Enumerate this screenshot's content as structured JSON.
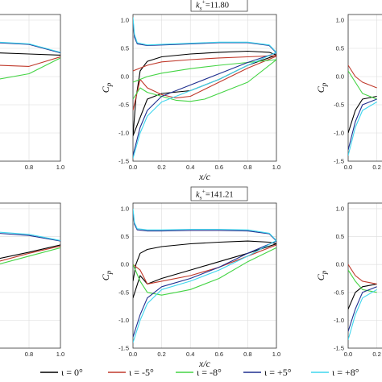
{
  "chart_data": {
    "type": "line",
    "shared": {
      "xlabel": "x/c",
      "ylabel": "C",
      "ylabel_sub": "p",
      "y_ticks": [
        "-1.5",
        "-1.0",
        "-0.5",
        "0.0",
        "0.5",
        "1.0"
      ],
      "x_ticks": [
        "0.0",
        "0.2",
        "0.4",
        "0.6",
        "0.8",
        "1.0"
      ],
      "xlim": [
        0,
        1
      ],
      "ylim": [
        -1.5,
        1.1
      ],
      "grid": true
    },
    "legend": {
      "placement": "bottom",
      "entries": [
        {
          "label": "ι = 0°",
          "color": "#000000"
        },
        {
          "label": "ι = -5°",
          "color": "#c0392b"
        },
        {
          "label": "ι = -8°",
          "color": "#44d444"
        },
        {
          "label": "ι = +5°",
          "color": "#1f2f8f"
        },
        {
          "label": "ι = +8°",
          "color": "#3fd6ee"
        }
      ]
    },
    "panels": [
      {
        "id": "top-left",
        "annotation": "",
        "series": [
          {
            "name": "ι = 0°",
            "color": "#000000",
            "x": [
              0.0,
              0.2,
              0.4,
              0.6,
              0.8,
              1.0
            ],
            "y": [
              0.5,
              0.47,
              0.44,
              0.42,
              0.4,
              0.38
            ]
          },
          {
            "name": "ι = -5°",
            "color": "#c0392b",
            "x": [
              0.0,
              0.2,
              0.4,
              0.6,
              0.8,
              1.0
            ],
            "y": [
              0.35,
              0.3,
              0.25,
              0.2,
              0.18,
              0.35
            ]
          },
          {
            "name": "ι = -8°",
            "color": "#44d444",
            "x": [
              0.0,
              0.2,
              0.4,
              0.6,
              0.8,
              1.0
            ],
            "y": [
              0.2,
              0.1,
              0.0,
              -0.05,
              0.05,
              0.33
            ]
          },
          {
            "name": "ι = +5°",
            "color": "#1f2f8f",
            "x": [
              0.0,
              0.2,
              0.4,
              0.6,
              0.8,
              1.0
            ],
            "y": [
              0.65,
              0.64,
              0.62,
              0.6,
              0.57,
              0.42
            ]
          },
          {
            "name": "ι = +8°",
            "color": "#3fd6ee",
            "x": [
              0.0,
              0.2,
              0.4,
              0.6,
              0.8,
              1.0
            ],
            "y": [
              0.66,
              0.65,
              0.63,
              0.61,
              0.58,
              0.43
            ]
          }
        ]
      },
      {
        "id": "top-middle",
        "annotation": "=11.80",
        "annotation_var": "k",
        "annotation_sub": "s",
        "annotation_sup": "+",
        "series": [
          {
            "name": "ι = 0°",
            "color": "#000000",
            "x": [
              0.0,
              0.02,
              0.05,
              0.1,
              0.2,
              0.4,
              0.6,
              0.8,
              0.95,
              1.0
            ],
            "y": [
              -1.05,
              -0.4,
              0.1,
              0.27,
              0.35,
              0.4,
              0.43,
              0.45,
              0.43,
              0.38
            ]
          },
          {
            "name": "ι = 0° (lower)",
            "color": "#000000",
            "x": [
              0.0,
              0.1,
              0.2,
              0.4,
              0.6,
              0.8,
              1.0
            ],
            "y": [
              -1.05,
              -0.4,
              -0.3,
              -0.25,
              -0.05,
              0.2,
              0.38
            ]
          },
          {
            "name": "ι = -5°",
            "color": "#c0392b",
            "x": [
              0.0,
              0.05,
              0.1,
              0.2,
              0.3,
              0.4,
              0.6,
              0.8,
              1.0
            ],
            "y": [
              -0.6,
              -0.05,
              -0.2,
              -0.32,
              -0.38,
              -0.35,
              -0.1,
              0.15,
              0.36
            ]
          },
          {
            "name": "ι = -5° (upper)",
            "color": "#c0392b",
            "x": [
              0.0,
              0.1,
              0.2,
              0.4,
              0.6,
              0.8,
              1.0
            ],
            "y": [
              0.1,
              0.2,
              0.26,
              0.3,
              0.33,
              0.35,
              0.37
            ]
          },
          {
            "name": "ι = -8°",
            "color": "#44d444",
            "x": [
              0.0,
              0.05,
              0.1,
              0.2,
              0.3,
              0.4,
              0.5,
              0.6,
              0.8,
              1.0
            ],
            "y": [
              -0.4,
              -0.2,
              -0.28,
              -0.35,
              -0.42,
              -0.44,
              -0.4,
              -0.3,
              -0.1,
              0.3
            ]
          },
          {
            "name": "ι = -8° (upper)",
            "color": "#44d444",
            "x": [
              0.0,
              0.1,
              0.2,
              0.4,
              0.6,
              0.8,
              1.0
            ],
            "y": [
              -0.1,
              0.0,
              0.06,
              0.14,
              0.2,
              0.25,
              0.3
            ]
          },
          {
            "name": "ι = +5°",
            "color": "#1f2f8f",
            "x": [
              0.0,
              0.01,
              0.03,
              0.1,
              0.2,
              0.4,
              0.6,
              0.8,
              0.95,
              1.0
            ],
            "y": [
              1.0,
              0.7,
              0.58,
              0.55,
              0.56,
              0.58,
              0.6,
              0.6,
              0.55,
              0.42
            ]
          },
          {
            "name": "ι = +5° (lower)",
            "color": "#1f2f8f",
            "x": [
              0.0,
              0.05,
              0.1,
              0.2,
              0.4,
              0.6,
              0.8,
              1.0
            ],
            "y": [
              -1.4,
              -0.9,
              -0.6,
              -0.35,
              -0.15,
              0.05,
              0.25,
              0.42
            ]
          },
          {
            "name": "ι = +8°",
            "color": "#3fd6ee",
            "x": [
              0.0,
              0.01,
              0.03,
              0.1,
              0.2,
              0.4,
              0.6,
              0.8,
              0.95,
              1.0
            ],
            "y": [
              1.05,
              0.75,
              0.6,
              0.56,
              0.57,
              0.59,
              0.61,
              0.61,
              0.56,
              0.43
            ]
          },
          {
            "name": "ι = +8° (lower)",
            "color": "#3fd6ee",
            "x": [
              0.0,
              0.05,
              0.1,
              0.2,
              0.4,
              0.6,
              0.8,
              1.0
            ],
            "y": [
              -1.45,
              -1.0,
              -0.7,
              -0.45,
              -0.25,
              -0.05,
              0.2,
              0.43
            ]
          }
        ]
      },
      {
        "id": "top-right",
        "annotation": "",
        "series": [
          {
            "name": "ι = 0°",
            "color": "#000000",
            "x": [
              0.0,
              0.05,
              0.1,
              0.2
            ],
            "y": [
              -1.0,
              -0.6,
              -0.4,
              -0.35
            ]
          },
          {
            "name": "ι = -5°",
            "color": "#c0392b",
            "x": [
              0.0,
              0.05,
              0.1,
              0.2
            ],
            "y": [
              0.2,
              0.0,
              -0.1,
              -0.2
            ]
          },
          {
            "name": "ι = -8°",
            "color": "#44d444",
            "x": [
              0.0,
              0.05,
              0.1,
              0.2
            ],
            "y": [
              0.1,
              -0.1,
              -0.3,
              -0.4
            ]
          },
          {
            "name": "ι = +5°",
            "color": "#1f2f8f",
            "x": [
              0.0,
              0.05,
              0.1,
              0.2
            ],
            "y": [
              -1.3,
              -0.8,
              -0.5,
              -0.4
            ]
          },
          {
            "name": "ι = +8°",
            "color": "#3fd6ee",
            "x": [
              0.0,
              0.05,
              0.1,
              0.2
            ],
            "y": [
              -1.4,
              -0.9,
              -0.6,
              -0.45
            ]
          }
        ]
      },
      {
        "id": "bottom-left",
        "annotation": "",
        "series": [
          {
            "name": "ι = 0°",
            "color": "#000000",
            "x": [
              0.0,
              0.2,
              0.4,
              0.6,
              0.8,
              1.0
            ],
            "y": [
              -0.2,
              -0.1,
              0.0,
              0.1,
              0.22,
              0.35
            ]
          },
          {
            "name": "ι = -5°",
            "color": "#c0392b",
            "x": [
              0.0,
              0.2,
              0.4,
              0.6,
              0.8,
              1.0
            ],
            "y": [
              -0.3,
              -0.2,
              -0.05,
              0.05,
              0.2,
              0.33
            ]
          },
          {
            "name": "ι = -8°",
            "color": "#44d444",
            "x": [
              0.0,
              0.2,
              0.4,
              0.6,
              0.8,
              1.0
            ],
            "y": [
              -0.4,
              -0.3,
              -0.15,
              0.0,
              0.15,
              0.3
            ]
          },
          {
            "name": "ι = +5°",
            "color": "#1f2f8f",
            "x": [
              0.0,
              0.2,
              0.4,
              0.6,
              0.8,
              1.0
            ],
            "y": [
              0.62,
              0.6,
              0.58,
              0.56,
              0.52,
              0.42
            ]
          },
          {
            "name": "ι = +8°",
            "color": "#3fd6ee",
            "x": [
              0.0,
              0.2,
              0.4,
              0.6,
              0.8,
              1.0
            ],
            "y": [
              0.64,
              0.62,
              0.6,
              0.58,
              0.54,
              0.43
            ]
          }
        ]
      },
      {
        "id": "bottom-middle",
        "annotation": "=141.21",
        "annotation_var": "k",
        "annotation_sub": "s",
        "annotation_sup": "+",
        "series": [
          {
            "name": "ι = 0°",
            "color": "#000000",
            "x": [
              0.0,
              0.02,
              0.05,
              0.1,
              0.2,
              0.4,
              0.6,
              0.8,
              0.95,
              1.0
            ],
            "y": [
              -0.3,
              0.0,
              0.2,
              0.27,
              0.32,
              0.37,
              0.4,
              0.42,
              0.4,
              0.37
            ]
          },
          {
            "name": "ι = 0° (lower)",
            "color": "#000000",
            "x": [
              0.0,
              0.05,
              0.1,
              0.2,
              0.4,
              0.6,
              0.8,
              1.0
            ],
            "y": [
              -0.6,
              -0.2,
              -0.35,
              -0.25,
              -0.1,
              0.05,
              0.2,
              0.37
            ]
          },
          {
            "name": "ι = -5°",
            "color": "#c0392b",
            "x": [
              0.0,
              0.05,
              0.1,
              0.2,
              0.4,
              0.6,
              0.8,
              1.0
            ],
            "y": [
              0.0,
              -0.1,
              -0.35,
              -0.3,
              -0.2,
              -0.05,
              0.15,
              0.35
            ]
          },
          {
            "name": "ι = -8°",
            "color": "#44d444",
            "x": [
              0.0,
              0.05,
              0.1,
              0.2,
              0.3,
              0.4,
              0.6,
              0.8,
              1.0
            ],
            "y": [
              0.0,
              -0.3,
              -0.5,
              -0.55,
              -0.5,
              -0.45,
              -0.25,
              0.05,
              0.3
            ]
          },
          {
            "name": "ι = +5°",
            "color": "#1f2f8f",
            "x": [
              0.0,
              0.01,
              0.03,
              0.1,
              0.2,
              0.4,
              0.6,
              0.8,
              0.95,
              1.0
            ],
            "y": [
              0.95,
              0.72,
              0.62,
              0.6,
              0.6,
              0.61,
              0.61,
              0.6,
              0.55,
              0.42
            ]
          },
          {
            "name": "ι = +5° (lower)",
            "color": "#1f2f8f",
            "x": [
              0.0,
              0.05,
              0.1,
              0.2,
              0.4,
              0.6,
              0.8,
              1.0
            ],
            "y": [
              -1.3,
              -0.9,
              -0.6,
              -0.4,
              -0.25,
              -0.05,
              0.2,
              0.42
            ]
          },
          {
            "name": "ι = +8°",
            "color": "#3fd6ee",
            "x": [
              0.0,
              0.01,
              0.03,
              0.1,
              0.2,
              0.4,
              0.6,
              0.8,
              0.95,
              1.0
            ],
            "y": [
              1.0,
              0.75,
              0.64,
              0.62,
              0.62,
              0.63,
              0.63,
              0.62,
              0.56,
              0.43
            ]
          },
          {
            "name": "ι = +8° (lower)",
            "color": "#3fd6ee",
            "x": [
              0.0,
              0.05,
              0.1,
              0.2,
              0.4,
              0.6,
              0.8,
              1.0
            ],
            "y": [
              -1.4,
              -1.0,
              -0.7,
              -0.45,
              -0.3,
              -0.1,
              0.15,
              0.43
            ]
          }
        ]
      },
      {
        "id": "bottom-right",
        "annotation": "",
        "series": [
          {
            "name": "ι = 0°",
            "color": "#000000",
            "x": [
              0.0,
              0.05,
              0.1,
              0.2
            ],
            "y": [
              -0.8,
              -0.5,
              -0.4,
              -0.35
            ]
          },
          {
            "name": "ι = -5°",
            "color": "#c0392b",
            "x": [
              0.0,
              0.05,
              0.1,
              0.2
            ],
            "y": [
              0.0,
              -0.2,
              -0.3,
              -0.35
            ]
          },
          {
            "name": "ι = -8°",
            "color": "#44d444",
            "x": [
              0.0,
              0.05,
              0.1,
              0.2
            ],
            "y": [
              -0.1,
              -0.3,
              -0.45,
              -0.5
            ]
          },
          {
            "name": "ι = +5°",
            "color": "#1f2f8f",
            "x": [
              0.0,
              0.05,
              0.1,
              0.2
            ],
            "y": [
              -1.2,
              -0.8,
              -0.5,
              -0.4
            ]
          },
          {
            "name": "ι = +8°",
            "color": "#3fd6ee",
            "x": [
              0.0,
              0.05,
              0.1,
              0.2
            ],
            "y": [
              -1.35,
              -0.9,
              -0.6,
              -0.45
            ]
          }
        ]
      }
    ]
  }
}
